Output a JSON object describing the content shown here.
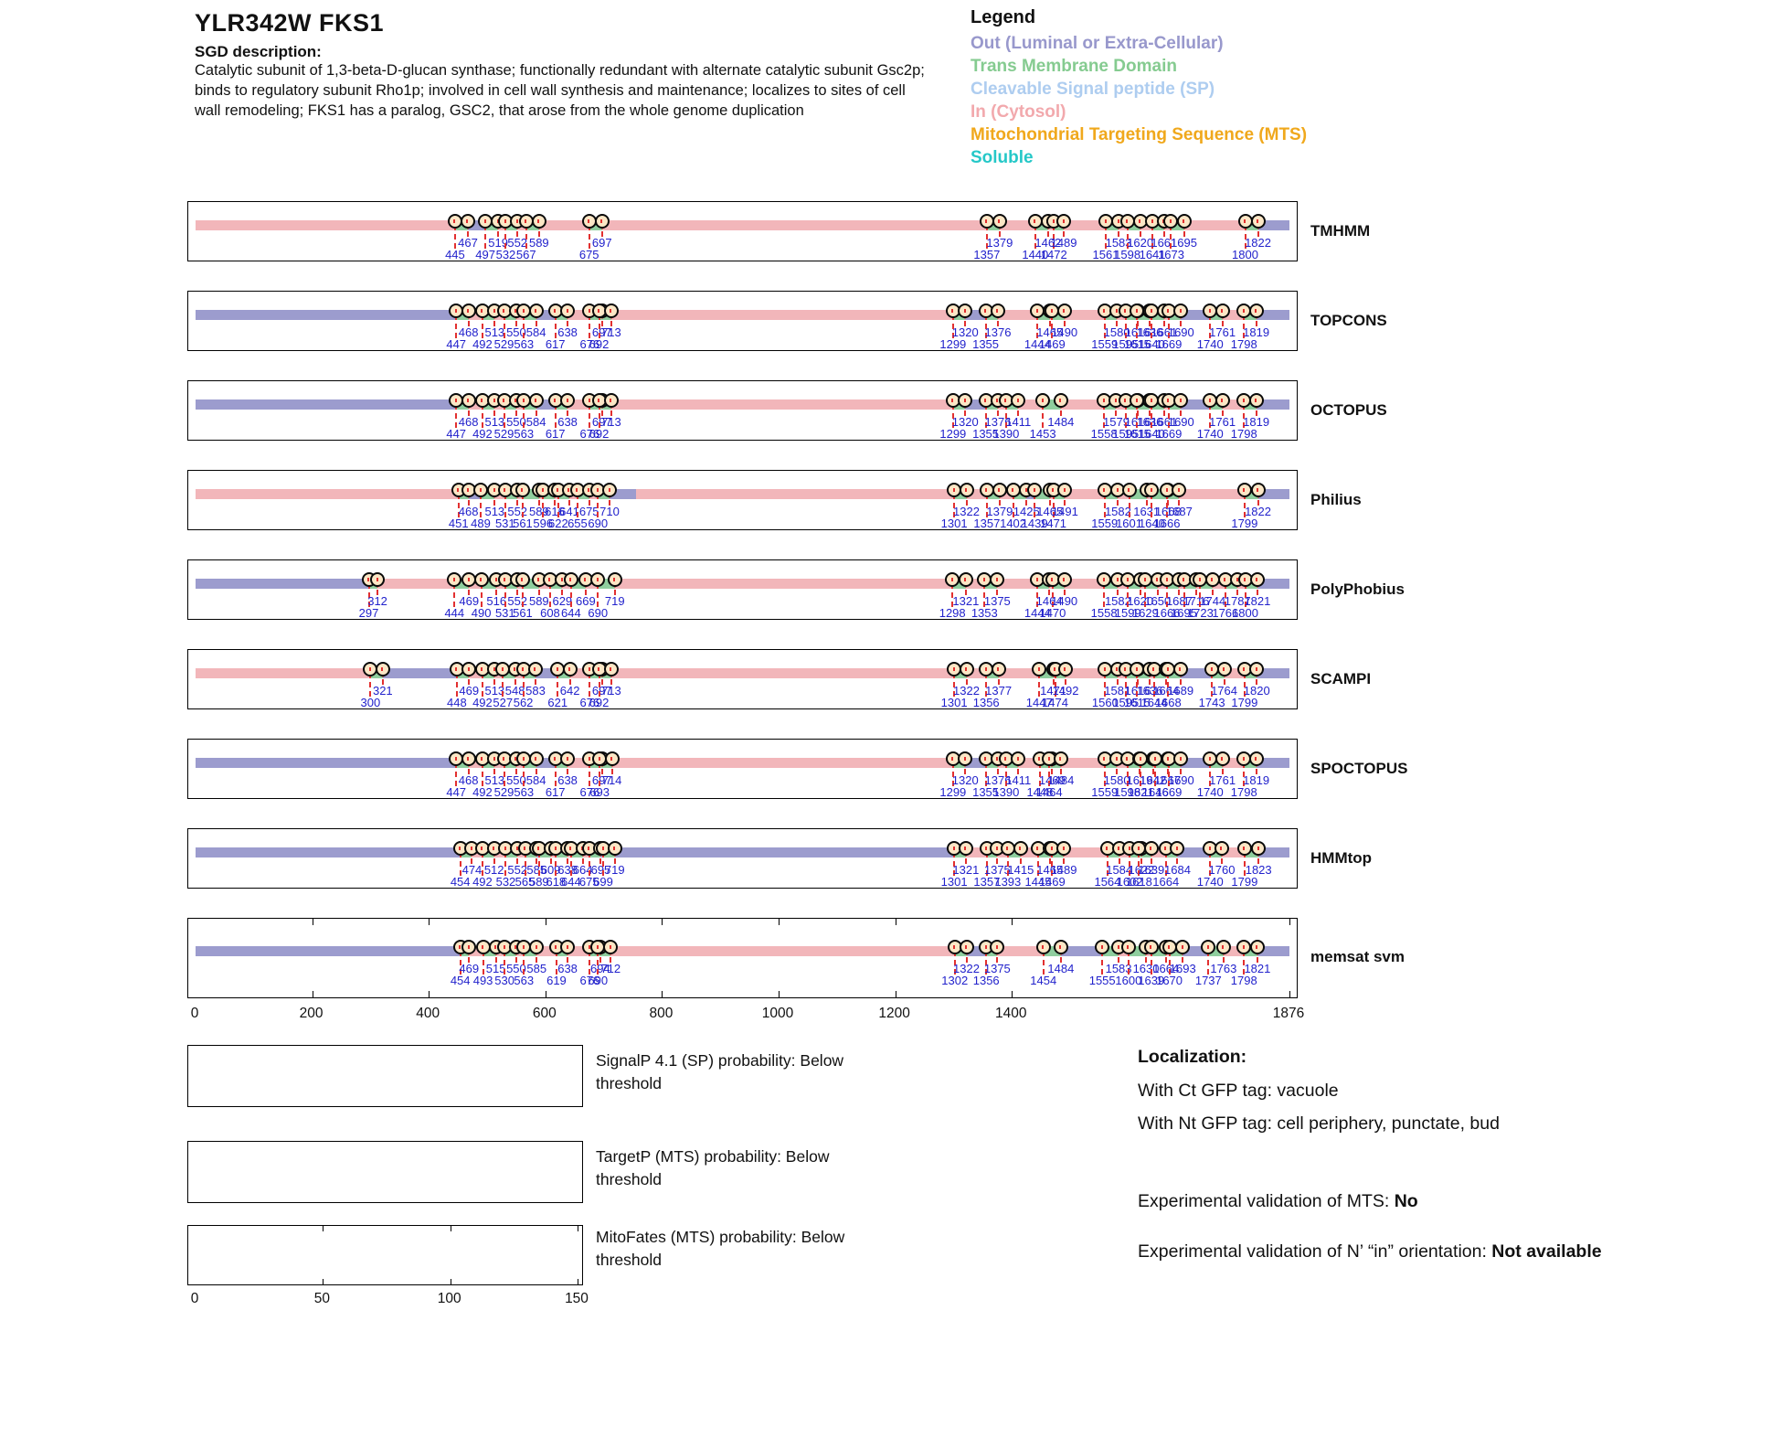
{
  "title": "YLR342W  FKS1",
  "sgd": {
    "heading": "SGD description:",
    "text": "Catalytic subunit of 1,3-beta-D-glucan synthase; functionally redundant with alternate catalytic subunit Gsc2p;\nbinds to regulatory subunit Rho1p; involved in cell wall synthesis and maintenance; localizes to sites of cell\nwall remodeling; FKS1 has a paralog, GSC2, that arose from the whole genome duplication"
  },
  "legend": {
    "heading": "Legend",
    "items": [
      {
        "label": "Out (Luminal or Extra-Cellular)",
        "color": "#9898cc"
      },
      {
        "label": "Trans Membrane Domain",
        "color": "#85cb90"
      },
      {
        "label": "Cleavable Signal peptide (SP)",
        "color": "#aecdf0"
      },
      {
        "label": "In (Cytosol)",
        "color": "#f2a9ad"
      },
      {
        "label": "Mitochondrial Targeting Sequence (MTS)",
        "color": "#f0a81c"
      },
      {
        "label": "Soluble",
        "color": "#25c8c8"
      }
    ]
  },
  "colors": {
    "in": "#f2b6ba",
    "out": "#9c9cce",
    "tm": "#8fce9e",
    "circle_fill": "#fbe7c6",
    "marker_line": "#e23030",
    "label_blue": "#2222cc"
  },
  "protein_length": 1876,
  "axis": {
    "ticks": [
      0,
      200,
      400,
      600,
      800,
      1000,
      1200,
      1400
    ],
    "end_label": "1876"
  },
  "tracks": [
    {
      "name": "TMHMM",
      "base": "in",
      "out_regions": [
        [
          467,
          497
        ],
        [
          1822,
          1876
        ]
      ],
      "in_regions": [],
      "tms": [
        [
          445,
          467
        ],
        [
          497,
          519
        ],
        [
          532,
          552
        ],
        [
          567,
          589
        ],
        [
          675,
          697
        ],
        [
          1357,
          1379
        ],
        [
          1440,
          1462
        ],
        [
          1472,
          1489
        ],
        [
          1561,
          1583
        ],
        [
          1598,
          1620
        ],
        [
          1641,
          1661
        ],
        [
          1673,
          1695
        ],
        [
          1800,
          1822
        ]
      ]
    },
    {
      "name": "TOPCONS",
      "base": "in",
      "out_regions": [
        [
          0,
          447
        ],
        [
          584,
          617
        ],
        [
          1320,
          1355
        ],
        [
          1690,
          1740
        ],
        [
          1819,
          1876
        ]
      ],
      "in_regions": [],
      "tms": [
        [
          447,
          468
        ],
        [
          492,
          513
        ],
        [
          529,
          550
        ],
        [
          563,
          584
        ],
        [
          617,
          638
        ],
        [
          676,
          697
        ],
        [
          692,
          713
        ],
        [
          1299,
          1320
        ],
        [
          1355,
          1376
        ],
        [
          1444,
          1465
        ],
        [
          1469,
          1490
        ],
        [
          1559,
          1580
        ],
        [
          1595,
          1616
        ],
        [
          1615,
          1636
        ],
        [
          1640,
          1661
        ],
        [
          1669,
          1690
        ],
        [
          1740,
          1761
        ],
        [
          1798,
          1819
        ]
      ]
    },
    {
      "name": "OCTOPUS",
      "base": "in",
      "out_regions": [
        [
          0,
          447
        ],
        [
          584,
          617
        ],
        [
          1320,
          1355
        ],
        [
          1690,
          1740
        ],
        [
          1819,
          1876
        ]
      ],
      "in_regions": [],
      "tms": [
        [
          447,
          468
        ],
        [
          492,
          513
        ],
        [
          529,
          550
        ],
        [
          563,
          584
        ],
        [
          617,
          638
        ],
        [
          676,
          697
        ],
        [
          692,
          713
        ],
        [
          1299,
          1320
        ],
        [
          1355,
          1376
        ],
        [
          1390,
          1411
        ],
        [
          1453,
          1484
        ],
        [
          1558,
          1579
        ],
        [
          1595,
          1616
        ],
        [
          1615,
          1636
        ],
        [
          1640,
          1661
        ],
        [
          1669,
          1690
        ],
        [
          1740,
          1761
        ],
        [
          1798,
          1819
        ]
      ]
    },
    {
      "name": "Philius",
      "base": "in",
      "out_regions": [
        [
          468,
          489
        ],
        [
          710,
          755
        ],
        [
          1425,
          1439
        ],
        [
          1822,
          1876
        ]
      ],
      "in_regions": [],
      "tms": [
        [
          451,
          468
        ],
        [
          489,
          513
        ],
        [
          531,
          552
        ],
        [
          561,
          589
        ],
        [
          596,
          616
        ],
        [
          622,
          641
        ],
        [
          655,
          675
        ],
        [
          690,
          710
        ],
        [
          1301,
          1322
        ],
        [
          1357,
          1379
        ],
        [
          1402,
          1425
        ],
        [
          1439,
          1465
        ],
        [
          1471,
          1491
        ],
        [
          1559,
          1582
        ],
        [
          1601,
          1631
        ],
        [
          1640,
          1668
        ],
        [
          1666,
          1687
        ],
        [
          1799,
          1822
        ]
      ]
    },
    {
      "name": "PolyPhobius",
      "base": "in",
      "out_regions": [
        [
          0,
          297
        ],
        [
          1821,
          1876
        ]
      ],
      "in_regions": [],
      "tms": [
        [
          297,
          312
        ],
        [
          444,
          469
        ],
        [
          490,
          516
        ],
        [
          531,
          552
        ],
        [
          561,
          589
        ],
        [
          608,
          629
        ],
        [
          644,
          669
        ],
        [
          690,
          719
        ],
        [
          1298,
          1321
        ],
        [
          1353,
          1375
        ],
        [
          1444,
          1464
        ],
        [
          1470,
          1490
        ],
        [
          1558,
          1582
        ],
        [
          1599,
          1620
        ],
        [
          1629,
          1650
        ],
        [
          1666,
          1687
        ],
        [
          1695,
          1716
        ],
        [
          1723,
          1744
        ],
        [
          1766,
          1787
        ],
        [
          1800,
          1821
        ]
      ]
    },
    {
      "name": "SCAMPI",
      "base": "in",
      "out_regions": [
        [
          321,
          448
        ],
        [
          583,
          621
        ],
        [
          1689,
          1743
        ],
        [
          1820,
          1876
        ]
      ],
      "in_regions": [],
      "tms": [
        [
          300,
          321
        ],
        [
          448,
          469
        ],
        [
          492,
          513
        ],
        [
          527,
          548
        ],
        [
          562,
          583
        ],
        [
          621,
          642
        ],
        [
          676,
          697
        ],
        [
          692,
          713
        ],
        [
          1301,
          1322
        ],
        [
          1356,
          1377
        ],
        [
          1447,
          1471
        ],
        [
          1474,
          1492
        ],
        [
          1560,
          1581
        ],
        [
          1595,
          1616
        ],
        [
          1615,
          1636
        ],
        [
          1644,
          1664
        ],
        [
          1668,
          1689
        ],
        [
          1743,
          1764
        ],
        [
          1799,
          1820
        ]
      ]
    },
    {
      "name": "SPOCTOPUS",
      "base": "in",
      "out_regions": [
        [
          0,
          447
        ],
        [
          584,
          617
        ],
        [
          1320,
          1355
        ],
        [
          1690,
          1740
        ],
        [
          1819,
          1876
        ]
      ],
      "in_regions": [],
      "tms": [
        [
          447,
          468
        ],
        [
          492,
          513
        ],
        [
          529,
          550
        ],
        [
          563,
          584
        ],
        [
          617,
          638
        ],
        [
          676,
          697
        ],
        [
          693,
          714
        ],
        [
          1299,
          1320
        ],
        [
          1355,
          1376
        ],
        [
          1390,
          1411
        ],
        [
          1448,
          1469
        ],
        [
          1464,
          1484
        ],
        [
          1559,
          1580
        ],
        [
          1598,
          1619
        ],
        [
          1621,
          1642
        ],
        [
          1646,
          1667
        ],
        [
          1669,
          1690
        ],
        [
          1740,
          1761
        ],
        [
          1798,
          1819
        ]
      ]
    },
    {
      "name": "HMMtop",
      "base": "out",
      "out_regions": [],
      "in_regions": [
        [
          474,
          492
        ],
        [
          512,
          532
        ],
        [
          552,
          565
        ],
        [
          609,
          618
        ],
        [
          638,
          644
        ],
        [
          664,
          675
        ],
        [
          1321,
          1357
        ],
        [
          1375,
          1393
        ],
        [
          1415,
          1445
        ],
        [
          1489,
          1564
        ],
        [
          1584,
          1602
        ],
        [
          1639,
          1664
        ],
        [
          1760,
          1799
        ]
      ],
      "tms": [
        [
          454,
          474
        ],
        [
          492,
          512
        ],
        [
          532,
          552
        ],
        [
          565,
          585
        ],
        [
          589,
          609
        ],
        [
          618,
          638
        ],
        [
          644,
          664
        ],
        [
          675,
          695
        ],
        [
          699,
          719
        ],
        [
          1301,
          1321
        ],
        [
          1357,
          1375
        ],
        [
          1393,
          1415
        ],
        [
          1445,
          1465
        ],
        [
          1469,
          1489
        ],
        [
          1564,
          1584
        ],
        [
          1602,
          1622
        ],
        [
          1618,
          1639
        ],
        [
          1664,
          1684
        ],
        [
          1740,
          1760
        ],
        [
          1799,
          1823
        ]
      ]
    },
    {
      "name": "memsat svm",
      "base": "in",
      "ruler": true,
      "out_regions": [
        [
          0,
          454
        ],
        [
          1322,
          1356
        ],
        [
          1484,
          1555
        ],
        [
          1693,
          1737
        ],
        [
          1821,
          1876
        ]
      ],
      "in_regions": [],
      "tms": [
        [
          454,
          469
        ],
        [
          493,
          515
        ],
        [
          530,
          550
        ],
        [
          563,
          585
        ],
        [
          619,
          638
        ],
        [
          676,
          694
        ],
        [
          690,
          712
        ],
        [
          1302,
          1322
        ],
        [
          1356,
          1375
        ],
        [
          1454,
          1484
        ],
        [
          1555,
          1583
        ],
        [
          1600,
          1630
        ],
        [
          1639,
          1664
        ],
        [
          1670,
          1693
        ],
        [
          1737,
          1763
        ],
        [
          1798,
          1821
        ]
      ]
    }
  ],
  "bottom_plots": [
    {
      "caption": "SignalP 4.1 (SP) probability: Below threshold"
    },
    {
      "caption": "TargetP (MTS) probability: Below threshold"
    },
    {
      "caption": "MitoFates (MTS) probability: Below threshold",
      "axis_ticks": [
        0,
        50,
        100,
        150
      ],
      "axis_max": 150
    }
  ],
  "localization": {
    "heading": "Localization:",
    "ct": "With Ct GFP tag: vacuole",
    "nt": "With Nt GFP tag: cell periphery, punctate, bud",
    "mts_label": "Experimental validation of MTS: ",
    "mts_value": "No",
    "orientation_label": "Experimental validation of N’ “in” orientation: ",
    "orientation_value": "Not available"
  }
}
